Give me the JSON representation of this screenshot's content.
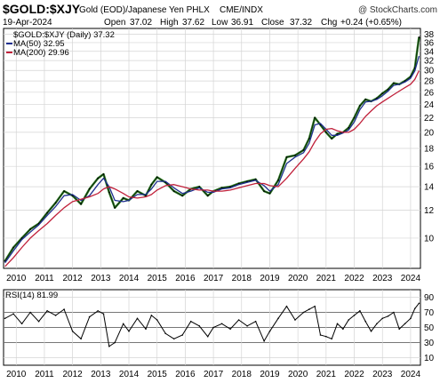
{
  "header": {
    "symbol": "$GOLD:$XJY",
    "description": "Gold (EOD)/Japanese Yen PHLX",
    "exchange": "CME/INDX",
    "watermark": "@ StockCharts.com",
    "date": "19-Apr-2024",
    "quote": {
      "open_label": "Open",
      "open": "37.02",
      "high_label": "High",
      "high": "37.62",
      "low_label": "Low",
      "low": "36.91",
      "close_label": "Close",
      "close": "37.32",
      "chg_label": "Chg",
      "chg": "+0.24 (+0.65%)"
    }
  },
  "chart_data": [
    {
      "type": "line",
      "panel": "price",
      "log_scale": true,
      "legend": [
        {
          "label": "$GOLD:$XJY (Daily) 37.32",
          "color": "#000000"
        },
        {
          "label": "MA(50) 32.95",
          "color": "#1f2f8f"
        },
        {
          "label": "MA(200) 29.96",
          "color": "#c0203a"
        }
      ],
      "legend_placement": "top-left",
      "x_ticks": [
        "2010",
        "2011",
        "2012",
        "2013",
        "2014",
        "2015",
        "2016",
        "2017",
        "2018",
        "2019",
        "2020",
        "2021",
        "2022",
        "2023",
        "2024"
      ],
      "y_ticks": [
        10,
        12,
        14,
        16,
        18,
        20,
        22,
        24,
        26,
        28,
        30,
        32,
        34,
        36,
        38
      ],
      "ylim": [
        8.2,
        39.5
      ],
      "xlim": [
        2009.55,
        2024.35
      ],
      "grid": true,
      "x": [
        2009.6,
        2009.9,
        2010.2,
        2010.5,
        2010.8,
        2011.1,
        2011.4,
        2011.7,
        2012.0,
        2012.3,
        2012.6,
        2012.9,
        2013.1,
        2013.3,
        2013.5,
        2013.8,
        2014.0,
        2014.3,
        2014.6,
        2014.8,
        2015.0,
        2015.3,
        2015.6,
        2015.9,
        2016.2,
        2016.5,
        2016.8,
        2017.0,
        2017.3,
        2017.6,
        2017.9,
        2018.2,
        2018.5,
        2018.8,
        2019.0,
        2019.3,
        2019.6,
        2019.9,
        2020.2,
        2020.4,
        2020.6,
        2020.8,
        2021.0,
        2021.2,
        2021.4,
        2021.6,
        2021.8,
        2022.0,
        2022.2,
        2022.4,
        2022.6,
        2022.8,
        2023.0,
        2023.2,
        2023.4,
        2023.6,
        2023.8,
        2024.0,
        2024.15,
        2024.3
      ],
      "series": [
        {
          "name": "$GOLD:$XJY (Daily)",
          "values": [
            8.6,
            9.4,
            10.0,
            10.6,
            11.0,
            11.8,
            12.6,
            13.6,
            13.2,
            12.5,
            13.8,
            14.8,
            15.2,
            13.5,
            12.2,
            13.0,
            12.8,
            13.6,
            13.2,
            14.2,
            14.9,
            14.4,
            13.6,
            13.2,
            13.8,
            14.0,
            13.2,
            13.6,
            13.9,
            14.0,
            14.3,
            14.5,
            14.7,
            13.6,
            13.4,
            14.6,
            17.0,
            17.2,
            17.8,
            19.2,
            22.0,
            21.0,
            20.0,
            19.2,
            19.8,
            20.0,
            20.6,
            22.0,
            23.8,
            24.8,
            24.5,
            25.0,
            25.8,
            26.5,
            27.6,
            27.4,
            28.0,
            28.8,
            30.5,
            37.3
          ]
        },
        {
          "name": "MA(50)",
          "values": [
            8.5,
            9.2,
            9.9,
            10.4,
            10.9,
            11.6,
            12.3,
            13.2,
            13.3,
            12.8,
            13.2,
            14.2,
            14.8,
            14.0,
            12.8,
            12.7,
            12.8,
            13.3,
            13.3,
            13.8,
            14.5,
            14.5,
            13.9,
            13.4,
            13.6,
            13.9,
            13.5,
            13.5,
            13.8,
            13.9,
            14.2,
            14.4,
            14.6,
            14.1,
            13.6,
            14.2,
            16.3,
            17.0,
            17.5,
            18.6,
            21.0,
            21.2,
            20.4,
            19.6,
            19.6,
            19.9,
            20.3,
            21.4,
            23.2,
            24.4,
            24.5,
            24.8,
            25.4,
            26.2,
            27.2,
            27.4,
            27.8,
            28.5,
            29.9,
            32.95
          ]
        },
        {
          "name": "MA(200)",
          "values": [
            8.3,
            8.8,
            9.4,
            10.0,
            10.5,
            11.0,
            11.6,
            12.2,
            12.7,
            12.9,
            13.1,
            13.4,
            13.8,
            14.0,
            13.8,
            13.4,
            13.1,
            13.0,
            13.1,
            13.3,
            13.7,
            14.1,
            14.2,
            14.0,
            13.8,
            13.7,
            13.7,
            13.6,
            13.6,
            13.7,
            13.9,
            14.1,
            14.3,
            14.3,
            14.1,
            14.0,
            14.8,
            15.8,
            16.8,
            17.6,
            18.8,
            19.8,
            20.4,
            20.5,
            20.2,
            20.0,
            20.0,
            20.4,
            21.2,
            22.2,
            23.0,
            23.8,
            24.4,
            25.0,
            25.6,
            26.2,
            26.8,
            27.4,
            28.3,
            29.96
          ]
        }
      ]
    },
    {
      "type": "line",
      "panel": "indicator",
      "legend": [
        {
          "label": "RSI(14) 81.99",
          "color": "#000000"
        }
      ],
      "legend_placement": "top-left",
      "x_ticks": [
        "2010",
        "2011",
        "2012",
        "2013",
        "2014",
        "2015",
        "2016",
        "2017",
        "2018",
        "2019",
        "2020",
        "2021",
        "2022",
        "2023",
        "2024"
      ],
      "y_ticks": [
        10,
        30,
        50,
        70,
        90
      ],
      "reference_lines": [
        30,
        50,
        70
      ],
      "ylim": [
        0,
        100
      ],
      "xlim": [
        2009.55,
        2024.35
      ],
      "x": [
        2009.6,
        2009.9,
        2010.2,
        2010.5,
        2010.8,
        2011.1,
        2011.4,
        2011.7,
        2012.0,
        2012.3,
        2012.6,
        2012.9,
        2013.1,
        2013.3,
        2013.5,
        2013.8,
        2014.0,
        2014.3,
        2014.6,
        2014.8,
        2015.0,
        2015.3,
        2015.6,
        2015.9,
        2016.2,
        2016.5,
        2016.8,
        2017.0,
        2017.3,
        2017.6,
        2017.9,
        2018.2,
        2018.5,
        2018.8,
        2019.0,
        2019.3,
        2019.6,
        2019.9,
        2020.2,
        2020.4,
        2020.6,
        2020.8,
        2021.0,
        2021.2,
        2021.4,
        2021.6,
        2021.8,
        2022.0,
        2022.2,
        2022.4,
        2022.6,
        2022.8,
        2023.0,
        2023.2,
        2023.4,
        2023.6,
        2023.8,
        2024.0,
        2024.15,
        2024.3
      ],
      "series": [
        {
          "name": "RSI(14)",
          "values": [
            62,
            68,
            55,
            70,
            58,
            72,
            66,
            74,
            45,
            35,
            64,
            72,
            68,
            25,
            30,
            55,
            45,
            62,
            48,
            66,
            60,
            42,
            35,
            40,
            58,
            52,
            38,
            50,
            55,
            48,
            60,
            52,
            58,
            32,
            45,
            62,
            78,
            60,
            70,
            74,
            78,
            40,
            38,
            35,
            55,
            48,
            60,
            66,
            72,
            58,
            45,
            55,
            62,
            65,
            70,
            48,
            55,
            62,
            75,
            82
          ]
        }
      ]
    }
  ]
}
